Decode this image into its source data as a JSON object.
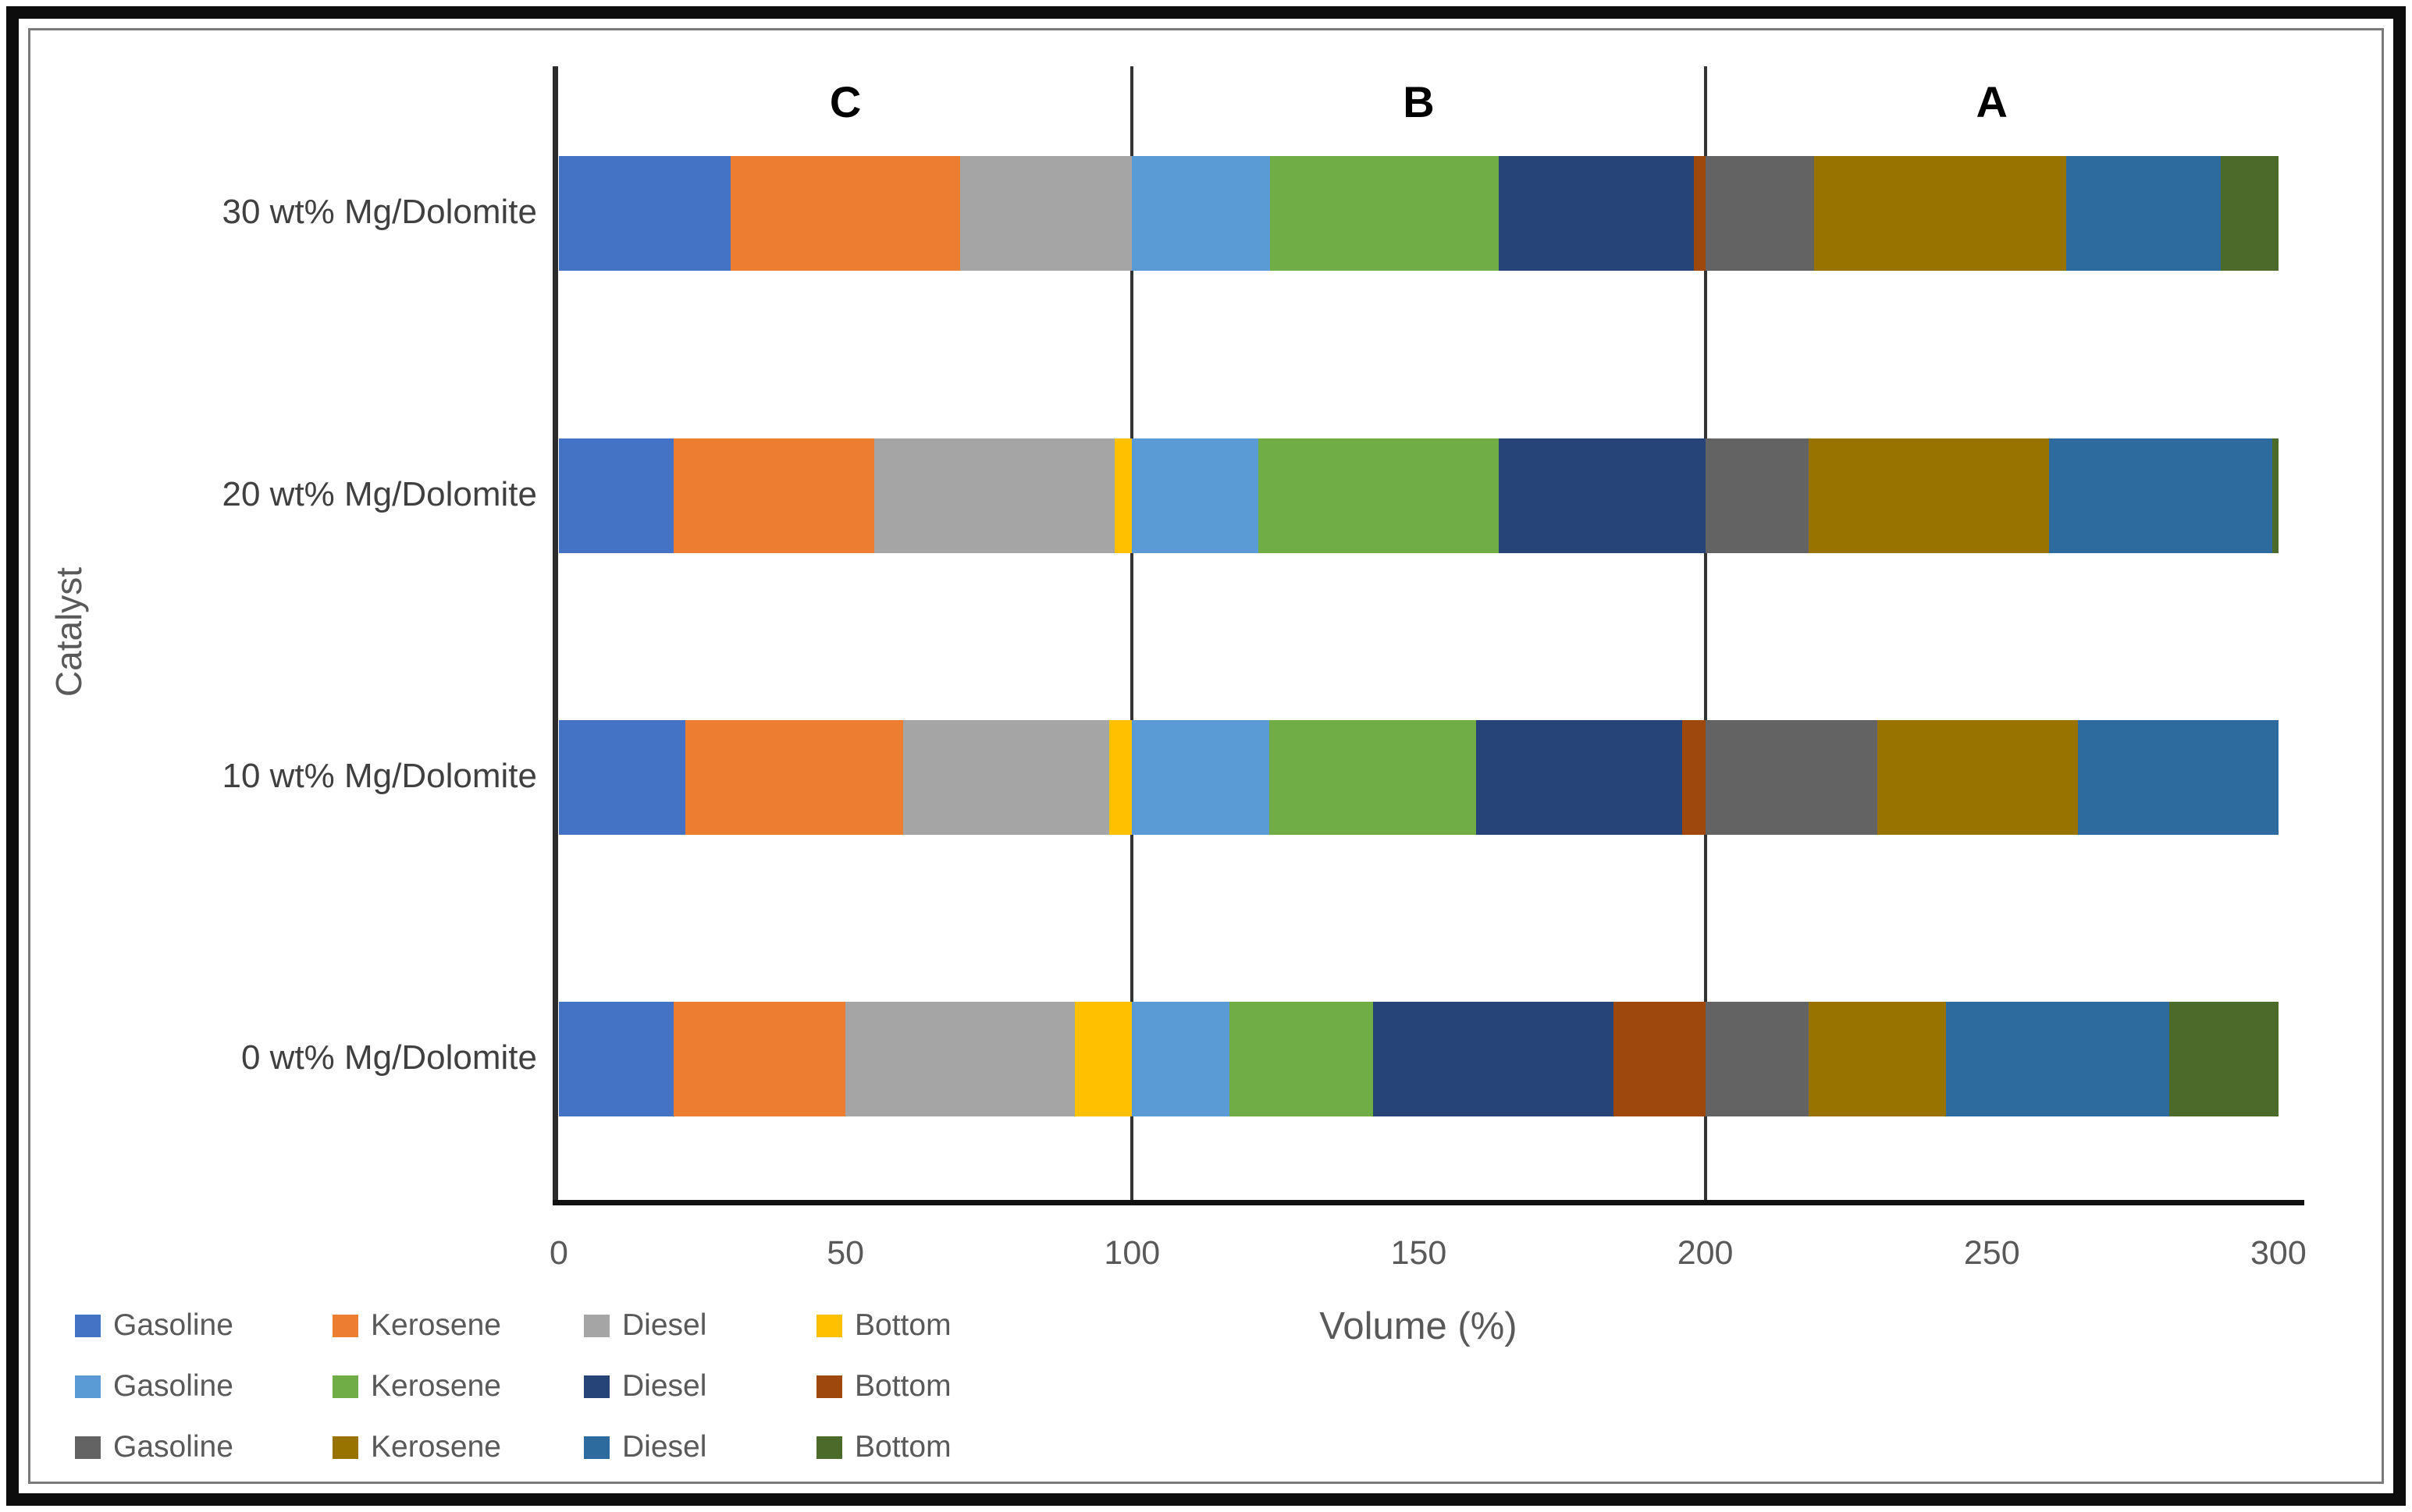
{
  "chart_data": {
    "type": "bar",
    "stacked": true,
    "orientation": "horizontal",
    "title": "",
    "xlabel": "Volume (%)",
    "ylabel": "Catalyst",
    "xlim": [
      0,
      300
    ],
    "xticks": [
      0,
      50,
      100,
      150,
      200,
      250,
      300
    ],
    "grid": false,
    "legend_position": "bottom-left",
    "categories": [
      "30 wt% Mg/Dolomite",
      "20 wt% Mg/Dolomite",
      "10 wt% Mg/Dolomite",
      "0 wt% Mg/Dolomite"
    ],
    "sections": [
      {
        "label": "C",
        "range": [
          0,
          100
        ]
      },
      {
        "label": "B",
        "range": [
          100,
          200
        ]
      },
      {
        "label": "A",
        "range": [
          200,
          300
        ]
      }
    ],
    "series": [
      {
        "group": "C",
        "name": "Gasoline",
        "color": "#4472C4",
        "values": [
          30,
          20,
          22,
          20
        ]
      },
      {
        "group": "C",
        "name": "Kerosene",
        "color": "#ED7D31",
        "values": [
          40,
          35,
          38,
          30
        ]
      },
      {
        "group": "C",
        "name": "Diesel",
        "color": "#A5A5A5",
        "values": [
          30,
          42,
          36,
          40
        ]
      },
      {
        "group": "C",
        "name": "Bottom",
        "color": "#FFC000",
        "values": [
          0,
          3,
          4,
          10
        ]
      },
      {
        "group": "B",
        "name": "Gasoline",
        "color": "#5B9BD5",
        "values": [
          24,
          22,
          24,
          17
        ]
      },
      {
        "group": "B",
        "name": "Kerosene",
        "color": "#70AD47",
        "values": [
          40,
          42,
          36,
          25
        ]
      },
      {
        "group": "B",
        "name": "Diesel",
        "color": "#264478",
        "values": [
          34,
          36,
          36,
          42
        ]
      },
      {
        "group": "B",
        "name": "Bottom",
        "color": "#9E480E",
        "values": [
          2,
          0,
          4,
          16
        ]
      },
      {
        "group": "A",
        "name": "Gasoline",
        "color": "#636363",
        "values": [
          19,
          18,
          30,
          18
        ]
      },
      {
        "group": "A",
        "name": "Kerosene",
        "color": "#997300",
        "values": [
          44,
          42,
          35,
          24
        ]
      },
      {
        "group": "A",
        "name": "Diesel",
        "color": "#2D6B9F",
        "values": [
          27,
          39,
          35,
          39
        ]
      },
      {
        "group": "A",
        "name": "Bottom",
        "color": "#4C6B2B",
        "values": [
          10,
          1,
          0,
          19
        ]
      }
    ]
  }
}
